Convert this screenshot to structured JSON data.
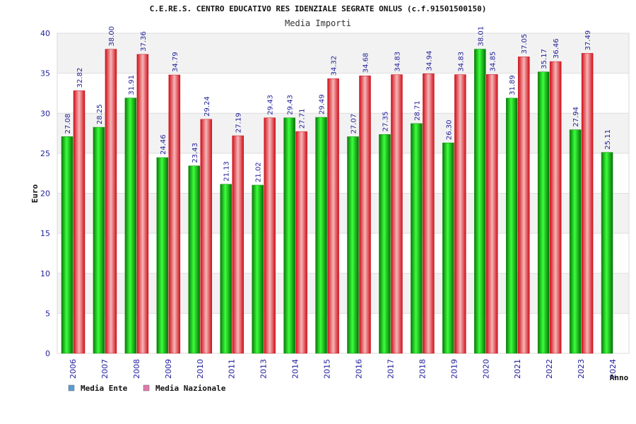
{
  "chart_data": {
    "type": "bar",
    "title": "C.E.RE.S. CENTRO EDUCATIVO RES IDENZIALE SEGRATE ONLUS (c.f.91501500150)",
    "subtitle": "Media Importi",
    "xlabel": "Anno",
    "ylabel": "Euro",
    "ylim": [
      0,
      40
    ],
    "yticks": [
      0,
      5,
      10,
      15,
      20,
      25,
      30,
      35,
      40
    ],
    "grid": true,
    "legend_position": "bottom-left",
    "categories": [
      "2006",
      "2007",
      "2008",
      "2009",
      "2010",
      "2011",
      "2013",
      "2014",
      "2015",
      "2016",
      "2017",
      "2018",
      "2019",
      "2020",
      "2021",
      "2022",
      "2023",
      "2024"
    ],
    "series": [
      {
        "name": "Media Ente",
        "legend_color": "#5b9bd5",
        "bar_color": "#11b811",
        "values": [
          27.08,
          28.25,
          31.91,
          24.46,
          23.43,
          21.13,
          21.02,
          29.43,
          29.49,
          27.07,
          27.35,
          28.71,
          26.3,
          38.01,
          31.89,
          35.17,
          27.94,
          25.11
        ],
        "labels": [
          "27.08",
          "28.25",
          "31.91",
          "24.46",
          "23.43",
          "21.13",
          "21.02",
          "29.43",
          "29.49",
          "27.07",
          "27.35",
          "28.71",
          "26.30",
          "38.01",
          "31.89",
          "35.17",
          "27.94",
          "25.11"
        ]
      },
      {
        "name": "Media Nazionale",
        "legend_color": "#e07aa8",
        "bar_color": "#e8252b",
        "values": [
          32.82,
          38.0,
          37.36,
          34.79,
          29.24,
          27.19,
          29.43,
          27.71,
          34.32,
          34.68,
          34.83,
          34.94,
          34.83,
          34.85,
          37.05,
          36.46,
          37.49,
          null
        ],
        "labels": [
          "32.82",
          "38.00",
          "37.36",
          "34.79",
          "29.24",
          "27.19",
          "29.43",
          "27.71",
          "34.32",
          "34.68",
          "34.83",
          "34.94",
          "34.83",
          "34.85",
          "37.05",
          "36.46",
          "37.49",
          null
        ]
      }
    ]
  }
}
